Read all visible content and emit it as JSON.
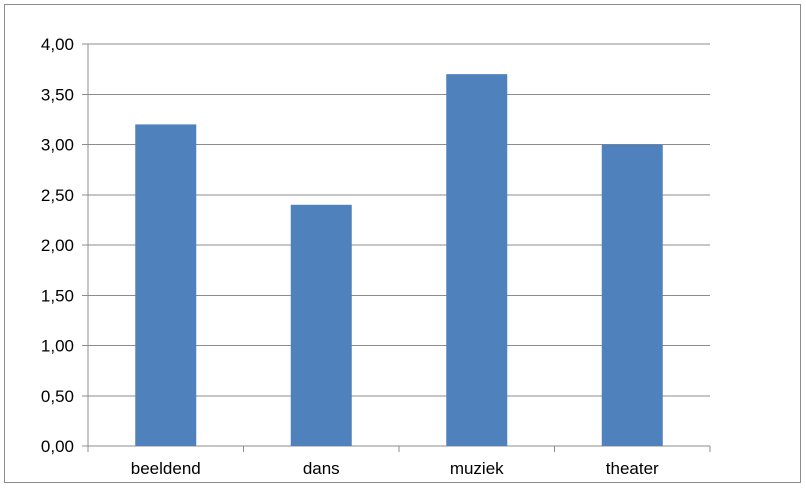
{
  "chart_data": {
    "type": "bar",
    "categories": [
      "beeldend",
      "dans",
      "muziek",
      "theater"
    ],
    "values": [
      3.2,
      2.4,
      3.7,
      3.0
    ],
    "ylim": [
      0,
      4
    ],
    "yticks": [
      "0,00",
      "0,50",
      "1,00",
      "1,50",
      "2,00",
      "2,50",
      "3,00",
      "3,50",
      "4,00"
    ],
    "grid": true,
    "legend": "none",
    "colors": {
      "bar": "#4f81bd",
      "grid": "#8c8c8c",
      "axis": "#8c8c8c"
    }
  }
}
